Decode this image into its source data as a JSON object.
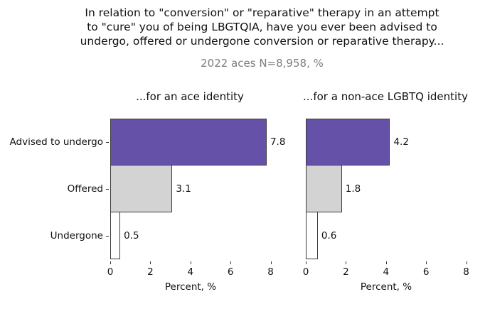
{
  "title": {
    "line1": "In relation to \"conversion\" or \"reparative\" therapy in an attempt",
    "line2": "to \"cure\" you of being LBGTQIA, have you ever been advised to",
    "line3": "undergo, offered or undergone conversion or reparative therapy..."
  },
  "subtitle": "2022 aces N=8,958, %",
  "chart_data": {
    "type": "bar",
    "orientation": "horizontal",
    "categories": [
      "Advised to undergo",
      "Offered",
      "Undergone"
    ],
    "panels": [
      {
        "title": "...for an ace identity",
        "values": [
          7.8,
          3.1,
          0.5
        ]
      },
      {
        "title": "...for a non-ace LGBTQ identity",
        "values": [
          4.2,
          1.8,
          0.6
        ]
      }
    ],
    "xlabel": "Percent, %",
    "xticks": [
      0,
      2,
      4,
      6,
      8
    ],
    "xlim": [
      0,
      8.3
    ],
    "grid": "off",
    "legend": "none",
    "bar_colors": [
      "#6551a8",
      "#d3d3d3",
      "#ffffff"
    ],
    "bar_edge_color": "#3c3c3c",
    "subtitle_color": "#7d7d7d"
  }
}
